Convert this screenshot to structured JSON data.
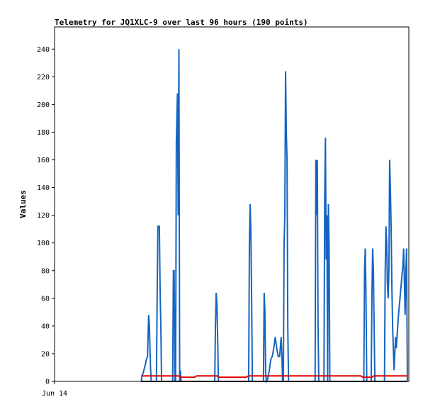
{
  "chart_data": {
    "type": "line",
    "title": "Telemetry for JQ1XLC-9 over last 96 hours (190 points)",
    "xlabel": "",
    "ylabel": "Values",
    "ylim": [
      0,
      256
    ],
    "yticks": [
      0,
      20,
      40,
      60,
      80,
      100,
      120,
      140,
      160,
      180,
      200,
      220,
      240
    ],
    "xlim": [
      0,
      96
    ],
    "xtick_labels": [
      {
        "x": 0,
        "label": "Jun 14"
      }
    ],
    "grid": false,
    "legend": "none",
    "series": [
      {
        "color": "#1565c0",
        "points": [
          [
            23.5,
            0
          ],
          [
            23.7,
            4
          ],
          [
            24.0,
            6
          ],
          [
            24.3,
            9
          ],
          [
            24.6,
            12
          ],
          [
            24.9,
            16
          ],
          [
            25.2,
            18
          ],
          [
            25.5,
            48
          ],
          [
            25.7,
            40
          ],
          [
            26.0,
            10
          ],
          [
            26.2,
            0
          ],
          [
            27.6,
            0
          ],
          [
            27.8,
            60
          ],
          [
            28.0,
            112
          ],
          [
            28.2,
            112
          ],
          [
            28.4,
            112
          ],
          [
            28.6,
            66
          ],
          [
            28.8,
            40
          ],
          [
            29.0,
            0
          ],
          [
            32.0,
            0
          ],
          [
            32.2,
            80
          ],
          [
            32.4,
            80
          ],
          [
            32.6,
            0
          ],
          [
            32.8,
            0
          ],
          [
            33.0,
            172
          ],
          [
            33.2,
            196
          ],
          [
            33.3,
            208
          ],
          [
            33.5,
            120
          ],
          [
            33.7,
            240
          ],
          [
            33.9,
            0
          ],
          [
            34.1,
            8
          ],
          [
            34.3,
            0
          ],
          [
            43.4,
            0
          ],
          [
            43.6,
            40
          ],
          [
            43.8,
            64
          ],
          [
            44.0,
            56
          ],
          [
            44.2,
            30
          ],
          [
            44.4,
            0
          ],
          [
            52.6,
            0
          ],
          [
            52.8,
            100
          ],
          [
            53.0,
            128
          ],
          [
            53.2,
            108
          ],
          [
            53.4,
            60
          ],
          [
            53.6,
            0
          ],
          [
            56.6,
            0
          ],
          [
            56.8,
            64
          ],
          [
            57.0,
            50
          ],
          [
            57.2,
            6
          ],
          [
            57.4,
            0
          ],
          [
            57.8,
            2
          ],
          [
            58.2,
            8
          ],
          [
            58.6,
            16
          ],
          [
            59.0,
            18
          ],
          [
            59.4,
            24
          ],
          [
            59.8,
            32
          ],
          [
            60.2,
            24
          ],
          [
            60.6,
            18
          ],
          [
            61.0,
            18
          ],
          [
            61.4,
            32
          ],
          [
            61.6,
            20
          ],
          [
            61.8,
            0
          ],
          [
            62.0,
            0
          ],
          [
            62.2,
            100
          ],
          [
            62.4,
            120
          ],
          [
            62.6,
            224
          ],
          [
            62.8,
            180
          ],
          [
            63.0,
            160
          ],
          [
            63.2,
            40
          ],
          [
            63.4,
            0
          ],
          [
            70.6,
            0
          ],
          [
            70.8,
            160
          ],
          [
            71.0,
            120
          ],
          [
            71.2,
            160
          ],
          [
            71.4,
            40
          ],
          [
            71.6,
            0
          ],
          [
            73.0,
            0
          ],
          [
            73.2,
            132
          ],
          [
            73.4,
            176
          ],
          [
            73.6,
            88
          ],
          [
            73.8,
            120
          ],
          [
            74.0,
            0
          ],
          [
            74.2,
            128
          ],
          [
            74.4,
            96
          ],
          [
            74.6,
            0
          ],
          [
            83.8,
            0
          ],
          [
            84.0,
            80
          ],
          [
            84.2,
            96
          ],
          [
            84.4,
            60
          ],
          [
            84.6,
            0
          ],
          [
            85.8,
            0
          ],
          [
            86.0,
            60
          ],
          [
            86.2,
            96
          ],
          [
            86.4,
            80
          ],
          [
            86.6,
            40
          ],
          [
            86.8,
            0
          ],
          [
            89.4,
            0
          ],
          [
            89.6,
            80
          ],
          [
            89.8,
            112
          ],
          [
            90.0,
            100
          ],
          [
            90.2,
            70
          ],
          [
            90.4,
            60
          ],
          [
            90.6,
            80
          ],
          [
            90.8,
            160
          ],
          [
            91.0,
            140
          ],
          [
            91.2,
            112
          ],
          [
            91.4,
            70
          ],
          [
            91.6,
            40
          ],
          [
            91.8,
            24
          ],
          [
            92.0,
            8
          ],
          [
            92.4,
            32
          ],
          [
            92.6,
            24
          ],
          [
            92.8,
            32
          ],
          [
            93.2,
            48
          ],
          [
            93.6,
            60
          ],
          [
            94.0,
            72
          ],
          [
            94.4,
            84
          ],
          [
            94.6,
            96
          ],
          [
            94.8,
            72
          ],
          [
            95.0,
            48
          ],
          [
            95.2,
            80
          ],
          [
            95.4,
            96
          ],
          [
            95.6,
            0
          ]
        ]
      },
      {
        "color": "#e00000",
        "points": [
          [
            23.5,
            4
          ],
          [
            33.5,
            4
          ],
          [
            34.3,
            3
          ],
          [
            38.0,
            3
          ],
          [
            38.5,
            4
          ],
          [
            44.0,
            4
          ],
          [
            44.5,
            3
          ],
          [
            52.0,
            3
          ],
          [
            52.5,
            4
          ],
          [
            83.0,
            4
          ],
          [
            83.5,
            3
          ],
          [
            86.0,
            3
          ],
          [
            86.5,
            4
          ],
          [
            95.6,
            4
          ]
        ]
      },
      {
        "color": "#000000",
        "points": [
          [
            23.5,
            0
          ],
          [
            95.6,
            0
          ]
        ]
      }
    ]
  }
}
